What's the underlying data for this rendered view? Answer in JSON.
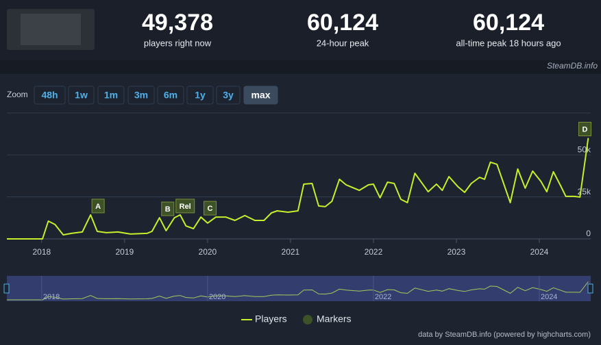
{
  "header": {
    "players_now": "49,378",
    "players_now_label": "players right now",
    "peak_24h": "60,124",
    "peak_24h_label": "24-hour peak",
    "peak_all_time": "60,124",
    "peak_all_time_label": "all-time peak 18 hours ago",
    "source": "SteamDB.info"
  },
  "zoom": {
    "label": "Zoom",
    "buttons": [
      "48h",
      "1w",
      "1m",
      "3m",
      "6m",
      "1y",
      "3y",
      "max"
    ],
    "selected": 7
  },
  "chart_data": {
    "type": "line",
    "x": [
      2017.58,
      2018.01,
      2018.08,
      2018.16,
      2018.26,
      2018.36,
      2018.49,
      2018.59,
      2018.67,
      2018.78,
      2018.92,
      2019.07,
      2019.27,
      2019.33,
      2019.42,
      2019.5,
      2019.6,
      2019.67,
      2019.74,
      2019.83,
      2019.92,
      2020.0,
      2020.1,
      2020.22,
      2020.33,
      2020.45,
      2020.57,
      2020.68,
      2020.77,
      2020.84,
      2020.97,
      2021.09,
      2021.16,
      2021.26,
      2021.34,
      2021.42,
      2021.5,
      2021.59,
      2021.67,
      2021.83,
      2021.94,
      2022.0,
      2022.08,
      2022.17,
      2022.25,
      2022.33,
      2022.41,
      2022.5,
      2022.66,
      2022.76,
      2022.83,
      2022.91,
      2023.02,
      2023.1,
      2023.18,
      2023.28,
      2023.34,
      2023.41,
      2023.49,
      2023.65,
      2023.74,
      2023.83,
      2023.92,
      2024.02,
      2024.09,
      2024.17,
      2024.26,
      2024.32,
      2024.42,
      2024.49,
      2024.59
    ],
    "series": [
      {
        "name": "Players",
        "color": "#c6f02a",
        "values": [
          0,
          0,
          10600,
          8600,
          2400,
          3300,
          4100,
          14300,
          4500,
          3700,
          4100,
          2900,
          3300,
          4500,
          12600,
          4900,
          12600,
          14300,
          7700,
          6100,
          13000,
          9400,
          13000,
          13000,
          11000,
          13900,
          11000,
          11000,
          15500,
          16700,
          15900,
          16700,
          32600,
          33000,
          19600,
          19200,
          22400,
          35500,
          32200,
          28900,
          32200,
          32600,
          24500,
          33800,
          33000,
          23600,
          21600,
          39100,
          28100,
          32600,
          28900,
          37100,
          31000,
          27700,
          33000,
          36700,
          35500,
          45700,
          44400,
          21600,
          41600,
          30200,
          40400,
          34200,
          28100,
          40000,
          31400,
          25300,
          25300,
          24900,
          60124
        ]
      }
    ],
    "markers_name": "Markers",
    "marker_color": "#3e5228",
    "markers": [
      {
        "label": "A",
        "x": 2018.68
      },
      {
        "label": "B",
        "x": 2019.52
      },
      {
        "label": "Rel",
        "x": 2019.73
      },
      {
        "label": "C",
        "x": 2020.03
      },
      {
        "label": "D",
        "x": 2024.55
      }
    ],
    "xlim": [
      2017.58,
      2024.62
    ],
    "xticks": [
      2018,
      2019,
      2020,
      2021,
      2022,
      2023,
      2024
    ],
    "ylim": [
      0,
      75000
    ],
    "yticks": [
      0,
      {
        "value": 25000,
        "label": "25k"
      },
      {
        "value": 50000,
        "label": "50k"
      }
    ],
    "grid": true,
    "navigator_ticks": [
      2018,
      2020,
      2022,
      2024
    ],
    "credit": "data by SteamDB.info (powered by highcharts.com)"
  }
}
